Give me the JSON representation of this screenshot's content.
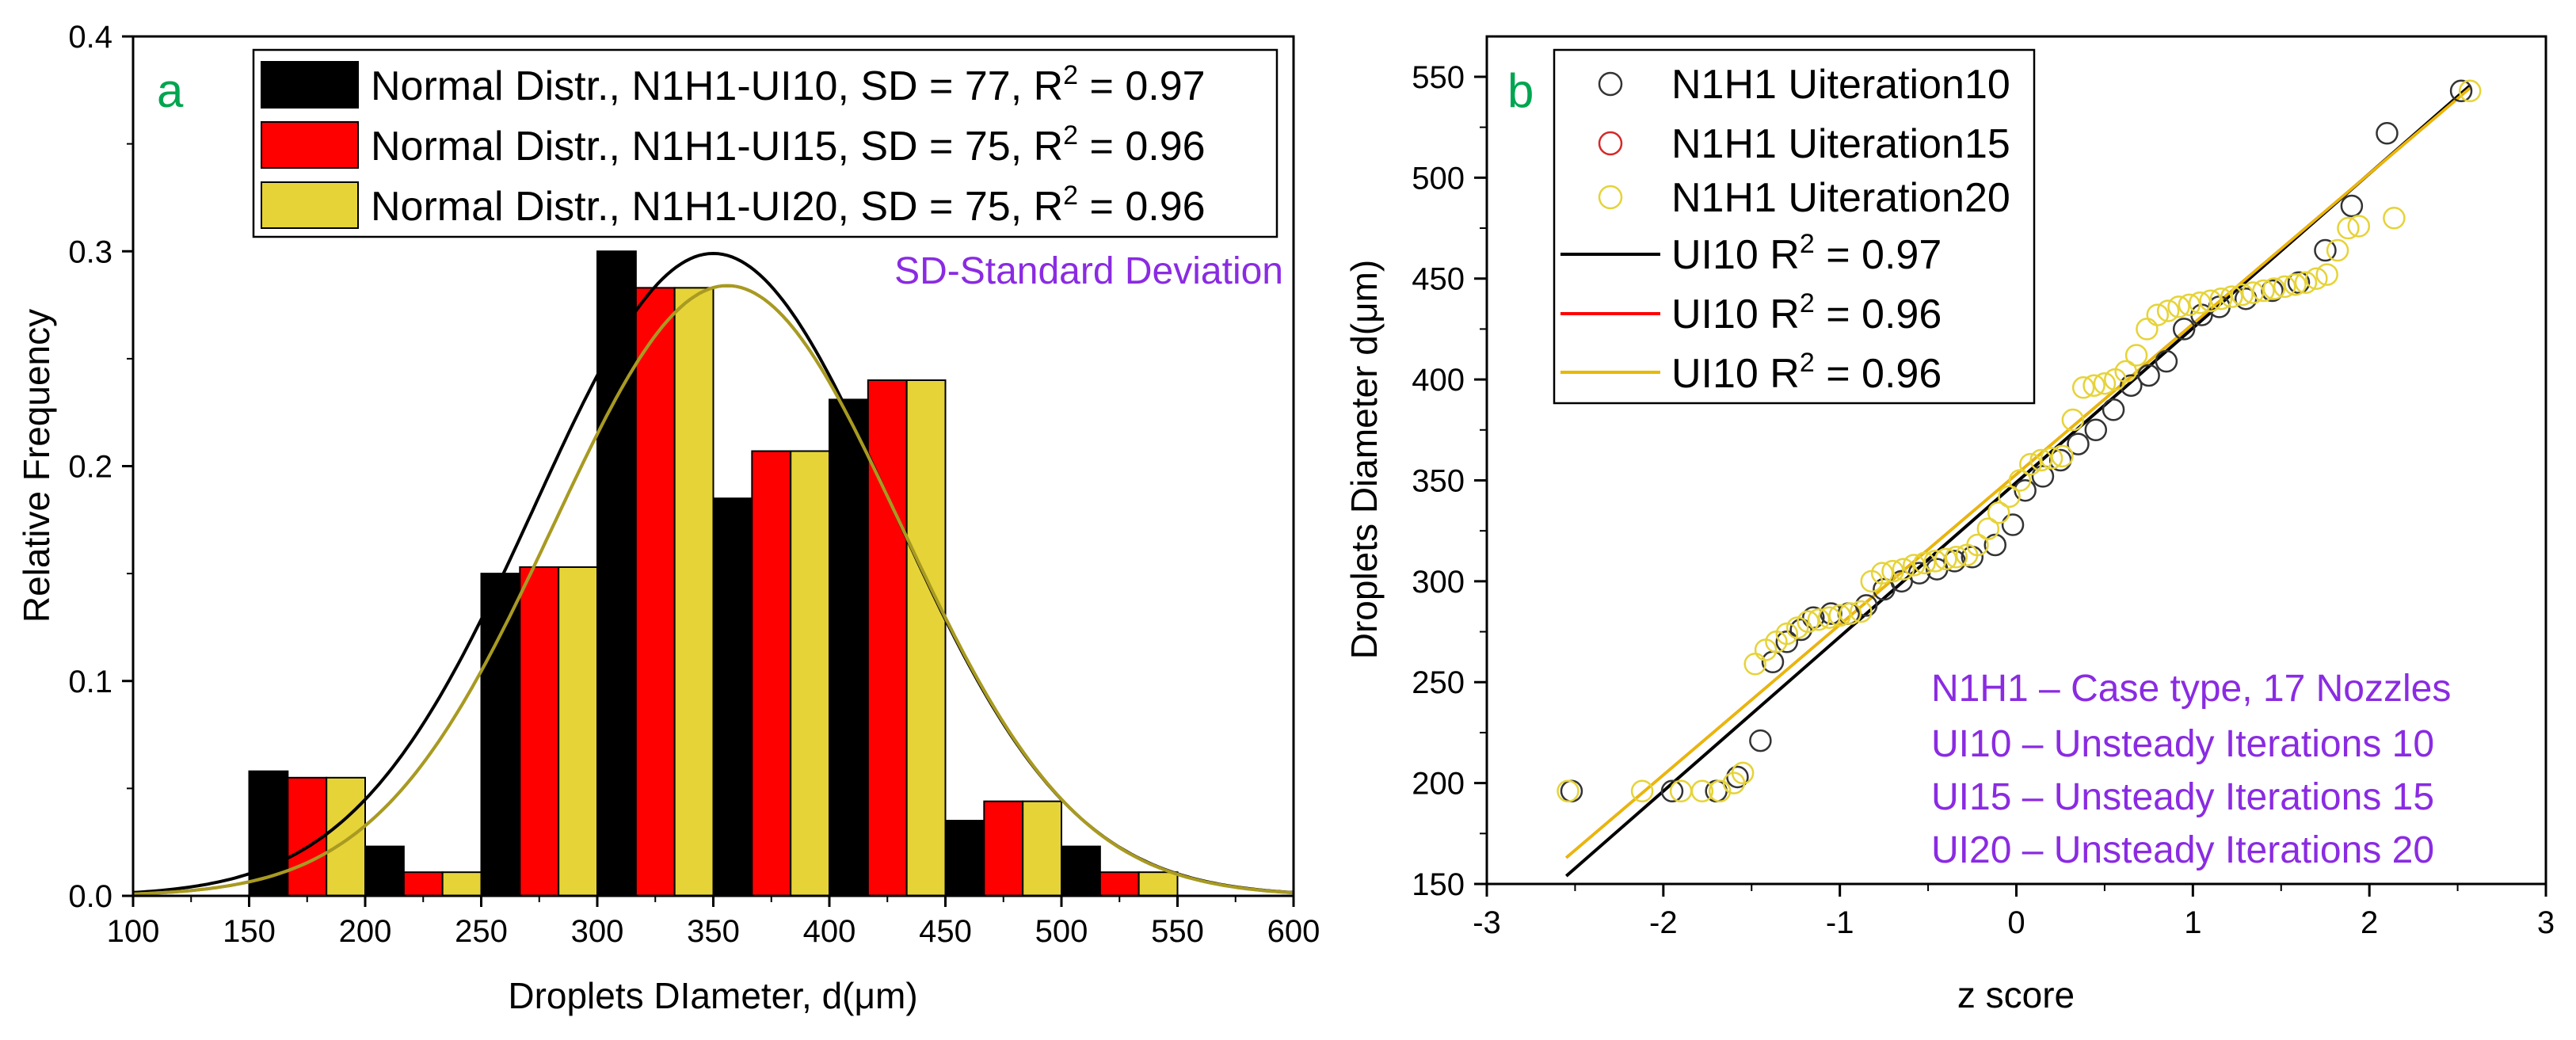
{
  "figure_colors": {
    "ui10": "#000000",
    "ui15": "#ff0000",
    "ui20": "#e6d338",
    "fit_ui15_ui20": "#a89a22",
    "fit_b_ui20": "#e8b800",
    "panel_label": "#00a550",
    "annotation": "#8a2be2"
  },
  "chart_data": [
    {
      "id": "a",
      "type": "bar",
      "panel_label": "a",
      "xlabel": "Droplets DIameter, d(μm)",
      "ylabel": "Relative Frequency",
      "xlim": [
        100,
        600
      ],
      "ylim": [
        0,
        0.4
      ],
      "xticks": [
        100,
        150,
        200,
        250,
        300,
        350,
        400,
        450,
        500,
        550,
        600
      ],
      "xtick_labels": [
        "100",
        "150",
        "200",
        "250",
        "300",
        "350",
        "400",
        "450",
        "500",
        "550",
        "600"
      ],
      "yticks": [
        0,
        0.1,
        0.2,
        0.3,
        0.4
      ],
      "ytick_labels": [
        "0.0",
        "0.1",
        "0.2",
        "0.3",
        "0.4"
      ],
      "bins": [
        [
          150,
          200
        ],
        [
          200,
          250
        ],
        [
          250,
          300
        ],
        [
          300,
          350
        ],
        [
          350,
          400
        ],
        [
          400,
          450
        ],
        [
          450,
          500
        ],
        [
          500,
          550
        ]
      ],
      "series": [
        {
          "name": "N1H1-UI10",
          "values": [
            0.058,
            0.023,
            0.15,
            0.3,
            0.185,
            0.231,
            0.035,
            0.023
          ]
        },
        {
          "name": "N1H1-UI15",
          "values": [
            0.055,
            0.011,
            0.153,
            0.283,
            0.207,
            0.24,
            0.044,
            0.011
          ]
        },
        {
          "name": "N1H1-UI20",
          "values": [
            0.055,
            0.011,
            0.153,
            0.283,
            0.207,
            0.24,
            0.044,
            0.011
          ]
        }
      ],
      "fits": [
        {
          "name": "UI10",
          "mean": 350,
          "sd": 77,
          "peak": 0.299
        },
        {
          "name": "UI15",
          "mean": 356,
          "sd": 75,
          "peak": 0.284
        },
        {
          "name": "UI20",
          "mean": 356,
          "sd": 75,
          "peak": 0.284
        }
      ],
      "legend": [
        {
          "prefix": "Normal Distr., N1H1-UI10, SD = 77, R",
          "sup": "2",
          "suffix": " = 0.97"
        },
        {
          "prefix": "Normal Distr., N1H1-UI15, SD = 75, R",
          "sup": "2",
          "suffix": " = 0.96"
        },
        {
          "prefix": "Normal Distr., N1H1-UI20, SD = 75, R",
          "sup": "2",
          "suffix": " = 0.96"
        }
      ],
      "annotation": "SD-Standard Deviation",
      "legend_placement": "top-center"
    },
    {
      "id": "b",
      "type": "scatter",
      "panel_label": "b",
      "xlabel": "z score",
      "ylabel": "Droplets Diameter d(μm)",
      "xlim": [
        -3,
        3
      ],
      "ylim": [
        150,
        570
      ],
      "xticks": [
        -3,
        -2,
        -1,
        0,
        1,
        2,
        3
      ],
      "xtick_labels": [
        "-3",
        "-2",
        "-1",
        "0",
        "1",
        "2",
        "3"
      ],
      "yticks": [
        150,
        200,
        250,
        300,
        350,
        400,
        450,
        500,
        550
      ],
      "ytick_labels": [
        "150",
        "200",
        "250",
        "300",
        "350",
        "400",
        "450",
        "500",
        "550"
      ],
      "series": [
        {
          "name": "N1H1 Uiteration10",
          "marker": "open-circle",
          "x": [
            -2.52,
            -1.95,
            -1.7,
            -1.58,
            -1.45,
            -1.38,
            -1.3,
            -1.22,
            -1.15,
            -1.05,
            -0.95,
            -0.85,
            -0.75,
            -0.65,
            -0.55,
            -0.45,
            -0.35,
            -0.25,
            -0.12,
            -0.02,
            0.05,
            0.15,
            0.25,
            0.35,
            0.45,
            0.55,
            0.65,
            0.75,
            0.85,
            0.95,
            1.05,
            1.15,
            1.3,
            1.45,
            1.6,
            1.75,
            1.9,
            2.1,
            2.52
          ],
          "y": [
            196,
            196,
            196,
            203,
            221,
            260,
            270,
            276,
            282,
            284,
            284,
            288,
            296,
            300,
            304,
            306,
            310,
            312,
            318,
            328,
            345,
            352,
            360,
            368,
            375,
            385,
            397,
            402,
            409,
            425,
            432,
            436,
            440,
            444,
            448,
            464,
            486,
            522,
            543
          ]
        },
        {
          "name": "N1H1 Uiteration15",
          "marker": "open-circle",
          "x": [],
          "y": []
        },
        {
          "name": "N1H1 Uiteration20",
          "marker": "open-circle",
          "x": [
            -2.54,
            -2.12,
            -1.9,
            -1.78,
            -1.68,
            -1.6,
            -1.55,
            -1.48,
            -1.42,
            -1.36,
            -1.3,
            -1.24,
            -1.18,
            -1.12,
            -1.06,
            -1.0,
            -0.94,
            -0.88,
            -0.82,
            -0.76,
            -0.7,
            -0.64,
            -0.58,
            -0.52,
            -0.46,
            -0.4,
            -0.34,
            -0.28,
            -0.22,
            -0.16,
            -0.1,
            -0.04,
            0.02,
            0.08,
            0.14,
            0.2,
            0.26,
            0.32,
            0.38,
            0.44,
            0.5,
            0.56,
            0.62,
            0.68,
            0.74,
            0.8,
            0.86,
            0.92,
            0.98,
            1.04,
            1.1,
            1.16,
            1.22,
            1.28,
            1.34,
            1.4,
            1.46,
            1.52,
            1.58,
            1.64,
            1.7,
            1.76,
            1.82,
            1.88,
            1.94,
            2.14,
            2.57
          ],
          "y": [
            196,
            196,
            196,
            196,
            196,
            200,
            205,
            259,
            266,
            270,
            274,
            277,
            280,
            281,
            282,
            283,
            284,
            285,
            300,
            304,
            305,
            306,
            308,
            309,
            310,
            311,
            312,
            313,
            318,
            326,
            334,
            342,
            350,
            358,
            360,
            361,
            362,
            380,
            396,
            397,
            398,
            400,
            404,
            412,
            425,
            432,
            434,
            436,
            437,
            438,
            439,
            440,
            441,
            442,
            443,
            444,
            445,
            446,
            447,
            448,
            450,
            452,
            464,
            475,
            476,
            480,
            543
          ]
        }
      ],
      "fits": [
        {
          "name": "UI10",
          "slope": 76.5,
          "intercept": 349
        },
        {
          "name": "UI15",
          "slope": 74.5,
          "intercept": 353
        },
        {
          "name": "UI20",
          "slope": 74.5,
          "intercept": 353
        }
      ],
      "legend": [
        {
          "label": "N1H1 Uiteration10"
        },
        {
          "label": "N1H1 Uiteration15"
        },
        {
          "label": "N1H1 Uiteration20"
        },
        {
          "prefix": "UI10 R",
          "sup": "2",
          "suffix": " = 0.97"
        },
        {
          "prefix": "UI10 R",
          "sup": "2",
          "suffix": " = 0.96"
        },
        {
          "prefix": "UI10 R",
          "sup": "2",
          "suffix": " = 0.96"
        }
      ],
      "annotations": [
        "N1H1 – Case type, 17 Nozzles",
        "UI10 – Unsteady Iterations 10",
        "UI15 – Unsteady Iterations 15",
        "UI20 – Unsteady Iterations 20"
      ],
      "legend_placement": "top-left"
    }
  ]
}
